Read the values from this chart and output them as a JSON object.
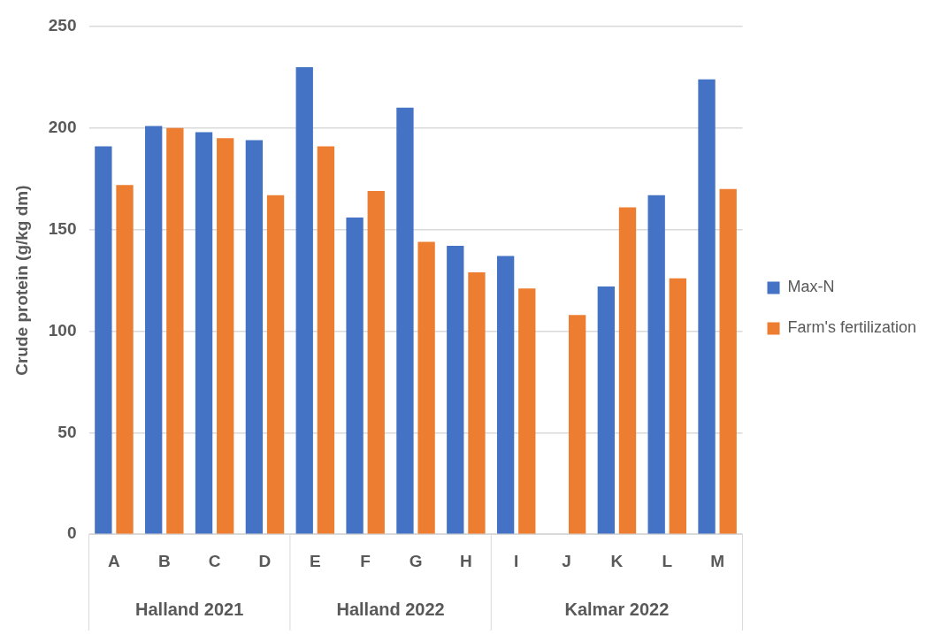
{
  "chart_data": {
    "type": "bar",
    "ylabel": "Crude protein (g/kg dm)",
    "categories": [
      "A",
      "B",
      "C",
      "D",
      "E",
      "F",
      "G",
      "H",
      "I",
      "J",
      "K",
      "L",
      "M"
    ],
    "series": [
      {
        "name": "Max-N",
        "color": "#4472c4",
        "values": [
          191,
          201,
          198,
          194,
          230,
          156,
          210,
          142,
          137,
          null,
          122,
          167,
          224
        ]
      },
      {
        "name": "Farm's fertilization",
        "color": "#ed7d31",
        "values": [
          172,
          200,
          195,
          167,
          191,
          169,
          144,
          129,
          121,
          108,
          161,
          126,
          170
        ]
      }
    ],
    "ylim": [
      0,
      250
    ],
    "yticks": [
      0,
      50,
      100,
      150,
      200,
      250
    ],
    "grid": "y",
    "legend": "right",
    "annotations": [
      "Halland 2021",
      "Halland 2022",
      "Kalmar 2022"
    ]
  }
}
